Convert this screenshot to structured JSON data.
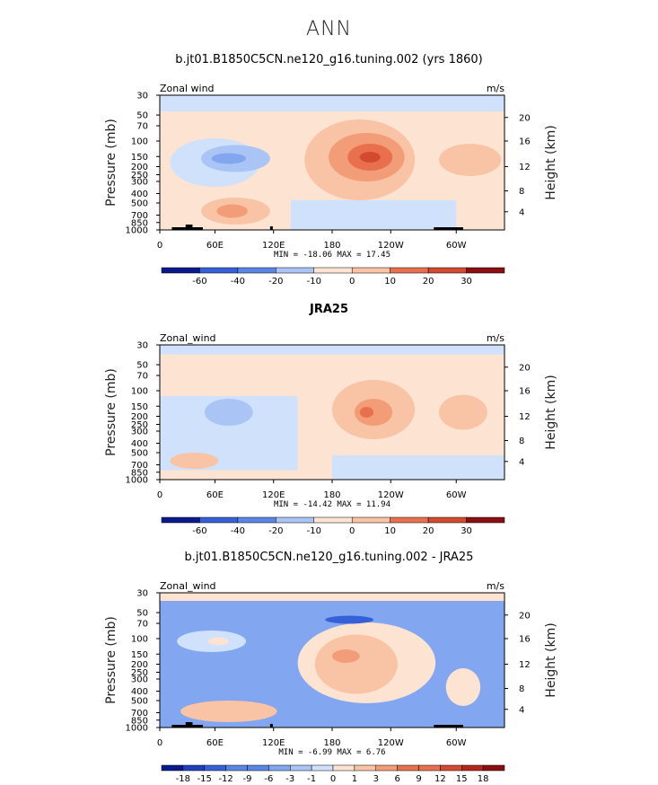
{
  "figure": {
    "title": "ANN"
  },
  "colors": {
    "palette": [
      "#0a1a8c",
      "#1f3fbf",
      "#3660d8",
      "#5a85e6",
      "#82a6ef",
      "#a9c4f5",
      "#cfe1fb",
      "#fde3d2",
      "#f9c3a6",
      "#f39c78",
      "#e9704e",
      "#d24a30",
      "#b3261e",
      "#8b0f10"
    ],
    "land": "#000000"
  },
  "chart_data": [
    {
      "type": "contour",
      "title": "b.jt01.B1850C5CN.ne120_g16.tuning.002 (yrs 1860)",
      "variable_label": "Zonal wind",
      "units": "m/s",
      "ylabel": "Pressure (mb)",
      "ylabel_right": "Height (km)",
      "x_ticks": [
        "0",
        "60E",
        "120E",
        "180",
        "120W",
        "60W"
      ],
      "y_ticks": [
        "30",
        "50",
        "70",
        "100",
        "150",
        "200",
        "250",
        "300",
        "400",
        "500",
        "700",
        "850",
        "1000"
      ],
      "height_ticks": [
        "20",
        "16",
        "12",
        "8",
        "4"
      ],
      "min_max_text": "MIN = -18.06   MAX =  17.45",
      "colorbar_ticks": [
        "-60",
        "-40",
        "-20",
        "-10",
        "0",
        "10",
        "20",
        "30"
      ],
      "min": -18.06,
      "max": 17.45
    },
    {
      "type": "contour",
      "title": "JRA25",
      "variable_label": "Zonal_wind",
      "units": "m/s",
      "ylabel": "Pressure (mb)",
      "ylabel_right": "Height (km)",
      "x_ticks": [
        "0",
        "60E",
        "120E",
        "180",
        "120W",
        "60W"
      ],
      "y_ticks": [
        "30",
        "50",
        "70",
        "100",
        "150",
        "200",
        "250",
        "300",
        "400",
        "500",
        "700",
        "850",
        "1000"
      ],
      "height_ticks": [
        "20",
        "16",
        "12",
        "8",
        "4"
      ],
      "min_max_text": "MIN = -14.42   MAX =  11.94",
      "colorbar_ticks": [
        "-60",
        "-40",
        "-20",
        "-10",
        "0",
        "10",
        "20",
        "30"
      ],
      "min": -14.42,
      "max": 11.94
    },
    {
      "type": "contour",
      "title": "b.jt01.B1850C5CN.ne120_g16.tuning.002 - JRA25",
      "variable_label": "Zonal_wind",
      "units": "m/s",
      "ylabel": "Pressure (mb)",
      "ylabel_right": "Height (km)",
      "x_ticks": [
        "0",
        "60E",
        "120E",
        "180",
        "120W",
        "60W"
      ],
      "y_ticks": [
        "30",
        "50",
        "70",
        "100",
        "150",
        "200",
        "250",
        "300",
        "400",
        "500",
        "700",
        "850",
        "1000"
      ],
      "height_ticks": [
        "20",
        "16",
        "12",
        "8",
        "4"
      ],
      "min_max_text": "MIN =  -6.99   MAX =   6.76",
      "colorbar_ticks": [
        "-18",
        "-15",
        "-12",
        "-9",
        "-6",
        "-3",
        "-1",
        "0",
        "1",
        "3",
        "6",
        "9",
        "12",
        "15",
        "18"
      ],
      "min": -6.99,
      "max": 6.76
    }
  ]
}
